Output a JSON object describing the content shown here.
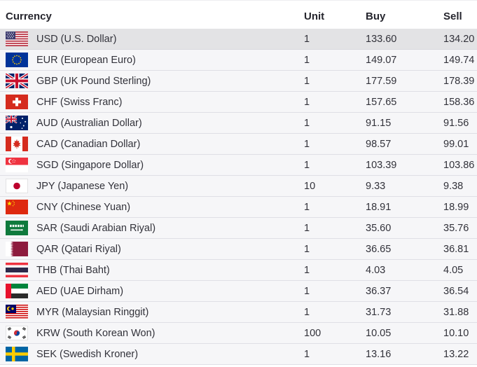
{
  "table": {
    "columns": [
      "Currency",
      "Unit",
      "Buy",
      "Sell"
    ],
    "rows": [
      {
        "flag": "usd",
        "name": "USD (U.S. Dollar)",
        "unit": "1",
        "buy": "133.60",
        "sell": "134.20",
        "highlighted": true
      },
      {
        "flag": "eur",
        "name": "EUR (European Euro)",
        "unit": "1",
        "buy": "149.07",
        "sell": "149.74",
        "highlighted": false
      },
      {
        "flag": "gbp",
        "name": "GBP (UK Pound Sterling)",
        "unit": "1",
        "buy": "177.59",
        "sell": "178.39",
        "highlighted": false
      },
      {
        "flag": "chf",
        "name": "CHF (Swiss Franc)",
        "unit": "1",
        "buy": "157.65",
        "sell": "158.36",
        "highlighted": false
      },
      {
        "flag": "aud",
        "name": "AUD (Australian Dollar)",
        "unit": "1",
        "buy": "91.15",
        "sell": "91.56",
        "highlighted": false
      },
      {
        "flag": "cad",
        "name": "CAD (Canadian Dollar)",
        "unit": "1",
        "buy": "98.57",
        "sell": "99.01",
        "highlighted": false
      },
      {
        "flag": "sgd",
        "name": "SGD (Singapore Dollar)",
        "unit": "1",
        "buy": "103.39",
        "sell": "103.86",
        "highlighted": false
      },
      {
        "flag": "jpy",
        "name": "JPY (Japanese Yen)",
        "unit": "10",
        "buy": "9.33",
        "sell": "9.38",
        "highlighted": false
      },
      {
        "flag": "cny",
        "name": "CNY (Chinese Yuan)",
        "unit": "1",
        "buy": "18.91",
        "sell": "18.99",
        "highlighted": false
      },
      {
        "flag": "sar",
        "name": "SAR (Saudi Arabian Riyal)",
        "unit": "1",
        "buy": "35.60",
        "sell": "35.76",
        "highlighted": false
      },
      {
        "flag": "qar",
        "name": "QAR (Qatari Riyal)",
        "unit": "1",
        "buy": "36.65",
        "sell": "36.81",
        "highlighted": false
      },
      {
        "flag": "thb",
        "name": "THB (Thai Baht)",
        "unit": "1",
        "buy": "4.03",
        "sell": "4.05",
        "highlighted": false
      },
      {
        "flag": "aed",
        "name": "AED (UAE Dirham)",
        "unit": "1",
        "buy": "36.37",
        "sell": "36.54",
        "highlighted": false
      },
      {
        "flag": "myr",
        "name": "MYR (Malaysian Ringgit)",
        "unit": "1",
        "buy": "31.73",
        "sell": "31.88",
        "highlighted": false
      },
      {
        "flag": "krw",
        "name": "KRW (South Korean Won)",
        "unit": "100",
        "buy": "10.05",
        "sell": "10.10",
        "highlighted": false
      },
      {
        "flag": "sek",
        "name": "SEK (Swedish Kroner)",
        "unit": "1",
        "buy": "13.16",
        "sell": "13.22",
        "highlighted": false
      }
    ],
    "colors": {
      "row_background": "#f6f6f8",
      "highlight_background": "#e3e3e5",
      "row_border": "#dfdfe5",
      "text": "#32323a",
      "header_text": "#26262e"
    }
  }
}
